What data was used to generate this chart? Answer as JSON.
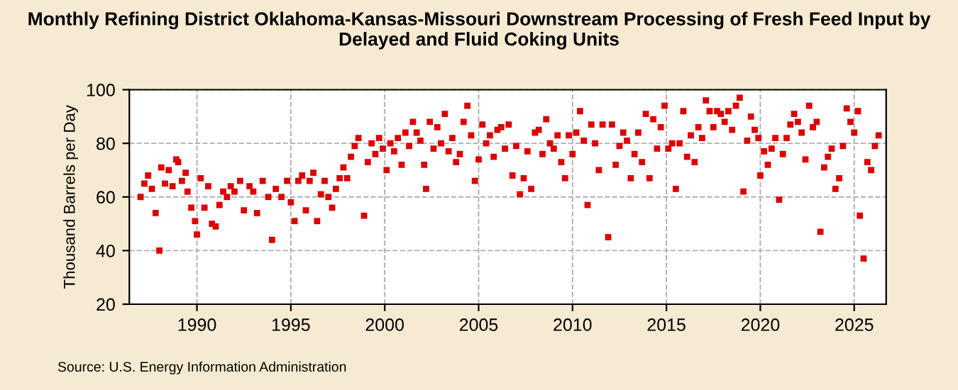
{
  "chart_data": {
    "type": "scatter",
    "title": "Monthly Refining District Oklahoma-Kansas-Missouri Downstream Processing of Fresh Feed Input by Delayed and Fluid Coking Units",
    "ylabel": "Thousand Barrels per Day",
    "annotations": [
      "Source: U.S. Energy Information Administration"
    ],
    "x": [
      1987.0,
      1987.2,
      1987.4,
      1987.6,
      1987.8,
      1988.0,
      1988.1,
      1988.3,
      1988.5,
      1988.7,
      1988.9,
      1989.0,
      1989.2,
      1989.4,
      1989.5,
      1989.7,
      1989.9,
      1990.0,
      1990.2,
      1990.4,
      1990.6,
      1990.8,
      1991.0,
      1991.2,
      1991.4,
      1991.6,
      1991.8,
      1992.0,
      1992.3,
      1992.5,
      1992.8,
      1993.0,
      1993.2,
      1993.5,
      1993.8,
      1994.0,
      1994.2,
      1994.5,
      1994.8,
      1995.0,
      1995.2,
      1995.4,
      1995.6,
      1995.8,
      1996.0,
      1996.2,
      1996.4,
      1996.6,
      1996.8,
      1997.0,
      1997.2,
      1997.4,
      1997.6,
      1997.8,
      1998.0,
      1998.2,
      1998.4,
      1998.6,
      1998.9,
      1999.1,
      1999.3,
      1999.5,
      1999.7,
      1999.9,
      2000.1,
      2000.3,
      2000.5,
      2000.7,
      2000.9,
      2001.1,
      2001.3,
      2001.5,
      2001.7,
      2001.9,
      2002.1,
      2002.2,
      2002.4,
      2002.6,
      2002.8,
      2003.0,
      2003.2,
      2003.4,
      2003.6,
      2003.8,
      2004.0,
      2004.2,
      2004.4,
      2004.6,
      2004.8,
      2005.0,
      2005.2,
      2005.4,
      2005.6,
      2005.8,
      2006.0,
      2006.2,
      2006.4,
      2006.6,
      2006.8,
      2007.0,
      2007.2,
      2007.4,
      2007.6,
      2007.8,
      2008.0,
      2008.2,
      2008.4,
      2008.6,
      2008.8,
      2009.0,
      2009.2,
      2009.4,
      2009.6,
      2009.8,
      2010.0,
      2010.2,
      2010.4,
      2010.6,
      2010.8,
      2011.0,
      2011.2,
      2011.4,
      2011.6,
      2011.9,
      2012.1,
      2012.3,
      2012.5,
      2012.7,
      2012.9,
      2013.1,
      2013.3,
      2013.5,
      2013.7,
      2013.9,
      2014.1,
      2014.3,
      2014.5,
      2014.7,
      2014.9,
      2015.1,
      2015.3,
      2015.5,
      2015.7,
      2015.9,
      2016.1,
      2016.3,
      2016.5,
      2016.7,
      2016.9,
      2017.1,
      2017.3,
      2017.5,
      2017.7,
      2017.9,
      2018.1,
      2018.3,
      2018.5,
      2018.7,
      2018.9,
      2019.1,
      2019.3,
      2019.5,
      2019.7,
      2019.9,
      2020.0,
      2020.2,
      2020.4,
      2020.6,
      2020.8,
      2021.0,
      2021.2,
      2021.4,
      2021.6,
      2021.8,
      2022.0,
      2022.2,
      2022.4,
      2022.6,
      2022.8,
      2023.0,
      2023.2,
      2023.4,
      2023.6,
      2023.8,
      2024.0,
      2024.2,
      2024.4,
      2024.6,
      2024.8,
      2025.0,
      2025.2,
      2025.3,
      2025.5,
      2025.7,
      2025.9,
      2026.1,
      2026.3
    ],
    "series": [
      {
        "color": "#dd0000",
        "values": [
          60,
          65,
          68,
          63,
          54,
          40,
          71,
          65,
          70,
          64,
          74,
          73,
          66,
          69,
          62,
          56,
          51,
          46,
          67,
          56,
          64,
          50,
          49,
          57,
          62,
          60,
          64,
          62,
          66,
          55,
          64,
          62,
          54,
          66,
          60,
          44,
          63,
          60,
          66,
          58,
          51,
          66,
          68,
          55,
          66,
          69,
          51,
          61,
          66,
          60,
          56,
          63,
          67,
          71,
          67,
          75,
          79,
          82,
          53,
          73,
          80,
          76,
          82,
          78,
          70,
          80,
          77,
          82,
          72,
          84,
          79,
          88,
          84,
          81,
          72,
          63,
          88,
          78,
          86,
          80,
          91,
          77,
          82,
          73,
          76,
          88,
          94,
          83,
          66,
          74,
          87,
          80,
          83,
          75,
          85,
          86,
          78,
          87,
          68,
          79,
          61,
          67,
          77,
          63,
          84,
          85,
          76,
          89,
          80,
          78,
          83,
          73,
          67,
          83,
          76,
          84,
          92,
          81,
          57,
          87,
          80,
          70,
          87,
          45,
          87,
          72,
          79,
          84,
          81,
          67,
          76,
          84,
          73,
          91,
          67,
          89,
          78,
          86,
          94,
          78,
          80,
          63,
          80,
          92,
          75,
          83,
          73,
          86,
          82,
          96,
          92,
          86,
          92,
          91,
          88,
          92,
          85,
          94,
          97,
          62,
          81,
          90,
          85,
          82,
          68,
          77,
          72,
          78,
          82,
          59,
          76,
          82,
          87,
          91,
          88,
          84,
          74,
          94,
          86,
          88,
          47,
          71,
          75,
          78,
          63,
          67,
          79,
          93,
          88,
          84,
          92,
          53,
          37,
          73,
          70,
          79,
          83
        ]
      }
    ],
    "marker": "square",
    "xlim": [
      1986.4,
      2026.7
    ],
    "xticks": [
      1990,
      1995,
      2000,
      2005,
      2010,
      2015,
      2020,
      2025
    ],
    "ylim": [
      20,
      100
    ],
    "yticks": [
      20,
      40,
      60,
      80,
      100
    ],
    "grid": true
  }
}
